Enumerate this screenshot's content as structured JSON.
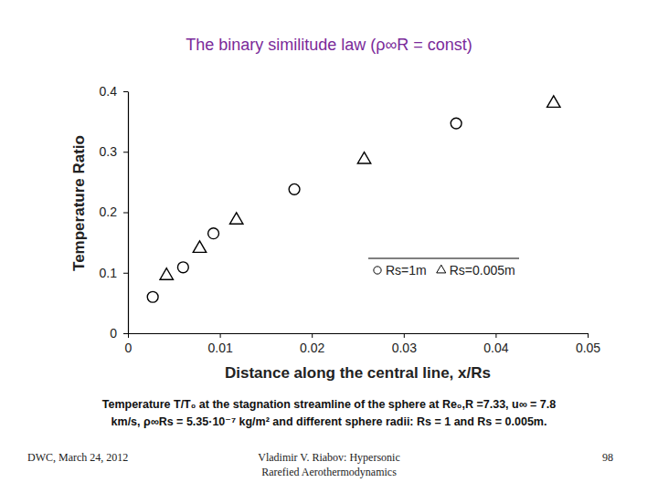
{
  "chart_data": {
    "type": "scatter",
    "title": "The binary similitude law (ρ∞R = const)",
    "x_label": "Distance along the central line, x/Rs",
    "y_label": "Temperature Ratio",
    "xlim": [
      0,
      0.05
    ],
    "xticks": [
      0,
      0.01,
      0.02,
      0.03,
      0.04,
      0.05
    ],
    "ylim": [
      0,
      0.4
    ],
    "yticks": [
      0,
      0.1,
      0.2,
      0.3,
      0.4
    ],
    "grid": false,
    "legend": "right",
    "series": [
      {
        "name": "Rs=1m",
        "color": "#000000",
        "marker": "circle",
        "x": [
          0.0027,
          0.006,
          0.0093,
          0.0181,
          0.0357
        ],
        "values": [
          0.06,
          0.109,
          0.165,
          0.238,
          0.347
        ]
      },
      {
        "name": "Rs=0.005m",
        "color": "#000000",
        "marker": "triangle",
        "x": [
          0.0042,
          0.0078,
          0.0118,
          0.0257,
          0.0463
        ],
        "values": [
          0.095,
          0.14,
          0.187,
          0.287,
          0.38
        ]
      }
    ]
  },
  "slide": {
    "caption": [
      "Temperature T/T₀ at the stagnation streamline of the sphere at Re₀,R =7.33, u∞ = 7.8",
      "km/s, ρ∞Rs = 5.35·10⁻⁷ kg/m² and different sphere radii: Rs = 1 and Rs = 0.005m."
    ],
    "footer_left": "DWC, March 24, 2012",
    "footer_center": [
      "Vladimir V. Riabov: Hypersonic",
      "Rarefied Aerothermodynamics"
    ],
    "footer_right": "98"
  }
}
